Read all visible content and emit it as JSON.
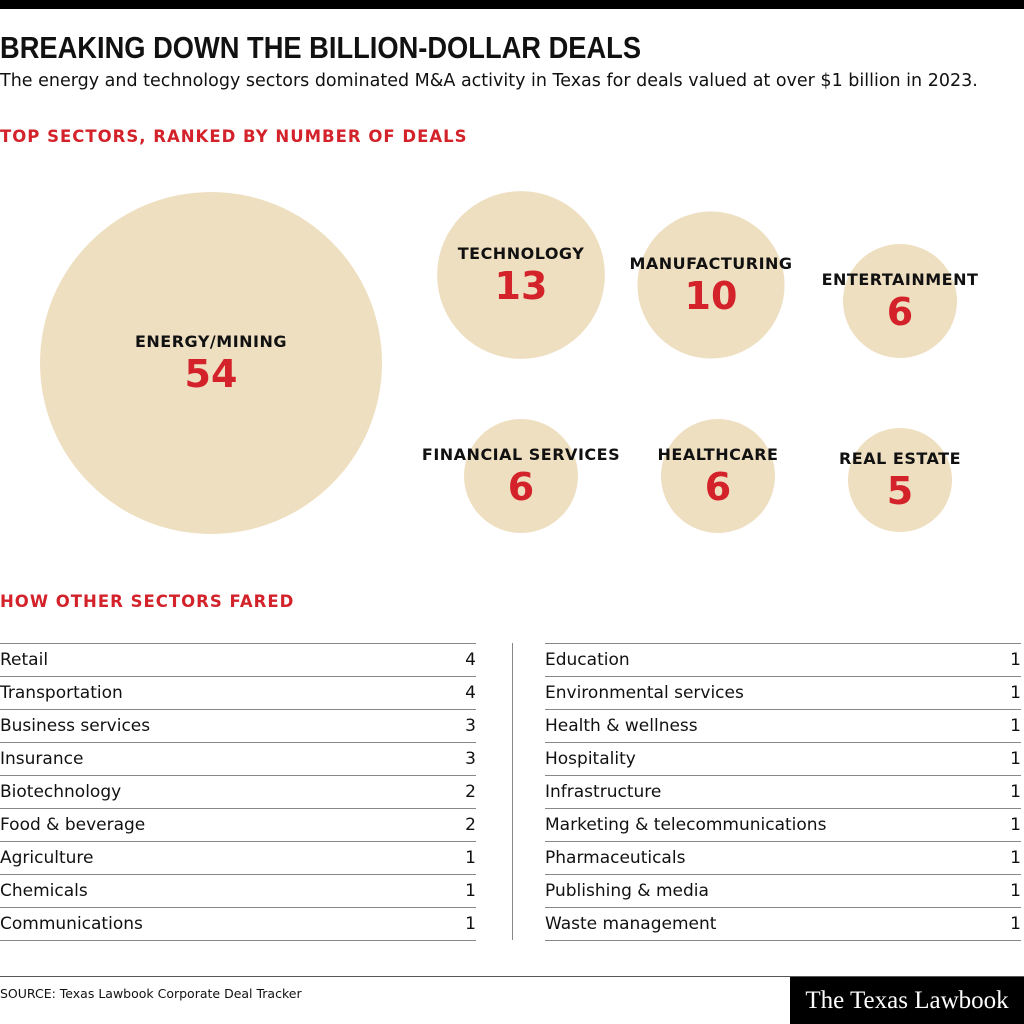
{
  "header": {
    "title": "BREAKING DOWN THE BILLION-DOLLAR DEALS",
    "subtitle": "The energy and technology sectors dominated M&A activity in Texas for deals valued at over $1 billion in 2023."
  },
  "colors": {
    "accent": "#d3222a",
    "bubble": "#efdfc1",
    "text": "#111111"
  },
  "chart_data": {
    "type": "bubble",
    "title": "TOP SECTORS, RANKED BY NUMBER OF DEALS",
    "categories": [
      "ENERGY/MINING",
      "TECHNOLOGY",
      "MANUFACTURING",
      "ENTERTAINMENT",
      "FINANCIAL SERVICES",
      "HEALTHCARE",
      "REAL ESTATE"
    ],
    "values": [
      54,
      13,
      10,
      6,
      6,
      6,
      5
    ]
  },
  "others": {
    "title": "HOW OTHER SECTORS FARED",
    "left": [
      {
        "name": "Retail",
        "value": "4"
      },
      {
        "name": "Transportation",
        "value": "4"
      },
      {
        "name": "Business services",
        "value": "3"
      },
      {
        "name": "Insurance",
        "value": "3"
      },
      {
        "name": "Biotechnology",
        "value": "2"
      },
      {
        "name": "Food & beverage",
        "value": "2"
      },
      {
        "name": "Agriculture",
        "value": "1"
      },
      {
        "name": "Chemicals",
        "value": "1"
      },
      {
        "name": "Communications",
        "value": "1"
      }
    ],
    "right": [
      {
        "name": "Education",
        "value": "1"
      },
      {
        "name": "Environmental services",
        "value": "1"
      },
      {
        "name": "Health & wellness",
        "value": "1"
      },
      {
        "name": "Hospitality",
        "value": "1"
      },
      {
        "name": "Infrastructure",
        "value": "1"
      },
      {
        "name": "Marketing & telecommunications",
        "value": "1"
      },
      {
        "name": "Pharmaceuticals",
        "value": "1"
      },
      {
        "name": "Publishing & media",
        "value": "1"
      },
      {
        "name": "Waste management",
        "value": "1"
      }
    ]
  },
  "footer": {
    "source": "SOURCE: Texas Lawbook Corporate Deal Tracker",
    "logo": "The Texas Lawbook"
  }
}
